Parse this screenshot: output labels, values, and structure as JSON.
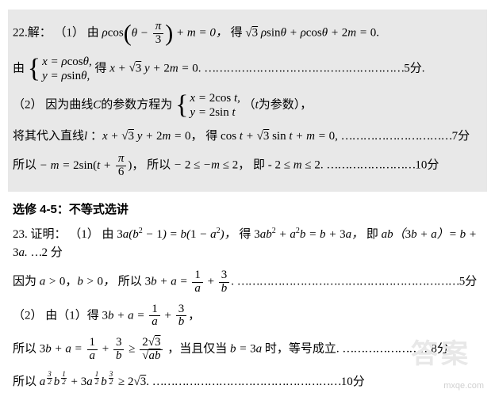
{
  "colors": {
    "bg": "#ffffff",
    "shade": "#e8e8e8",
    "text": "#000000",
    "wm": "#d0d0d0",
    "wm2": "#e8e8e8"
  },
  "q22": {
    "label": "22.解：",
    "p1": {
      "lead": "（1）",
      "by": "由",
      "expr1_a": "ρ",
      "expr1_cos": "cos",
      "expr1_in_a": "θ −",
      "expr1_frac_num": "π",
      "expr1_frac_den": "3",
      "expr1_b": "+ m = 0，",
      "get": "得",
      "expr2": "√3 ρsinθ + ρcosθ + 2m = 0."
    },
    "p1b": {
      "by": "由",
      "b1": "x = ρcosθ,",
      "b2": "y = ρsinθ,",
      "get": "得",
      "expr": "x + √3 y + 2m = 0.",
      "dots": "………………………………………………",
      "pts": "5分."
    },
    "p2": {
      "lead": "（2）",
      "t1": "因为曲线",
      "C": "C",
      "t2": "的参数方程为",
      "b1": "x = 2cos t,",
      "b2": "y = 2sin t",
      "t3": "（t为参数），"
    },
    "p2b": {
      "t1": "将其代入直线",
      "l": "l",
      "expr1": "：x + √3 y + 2m = 0，",
      "get": "得",
      "expr2": "cos t + √3 sin t + m = 0,",
      "dots": "…………………………",
      "pts": "7分"
    },
    "p2c": {
      "t1": "所以",
      "expr_a": "− m = 2sin(t +",
      "frac_num": "π",
      "frac_den": "6",
      "expr_b": ")，",
      "t2": "所以",
      "expr2": "− 2 ≤ −m ≤ 2，",
      "t3": "即",
      "expr3": "- 2 ≤ m ≤ 2.",
      "dots": "……………………",
      "pts": "10分"
    }
  },
  "heading": "选修 4-5：不等式选讲",
  "q23": {
    "label": "23. 证明：",
    "p1": {
      "lead": "（1）",
      "by": "由",
      "e1": "3a(b² − 1) = b(1 − a²)，",
      "get": "得",
      "e2": "3ab² + a²b = b + 3a，",
      "ie": "即",
      "e3": "ab（3b + a）= b + 3a.",
      "dots": "…",
      "pts": "2 分"
    },
    "p1b": {
      "t1": "因为",
      "e1": "a > 0，b > 0，",
      "t2": "所以",
      "lhs": "3b + a =",
      "f1n": "1",
      "f1d": "a",
      "plus": "+",
      "f2n": "3",
      "f2d": "b",
      "dot": ".",
      "dots": "……………………………………………………",
      "pts": "5分"
    },
    "p2": {
      "lead": "（2）",
      "t1": "由（1）得",
      "lhs": "3b + a =",
      "f1n": "1",
      "f1d": "a",
      "plus": "+",
      "f2n": "3",
      "f2d": "b",
      "comma": "，"
    },
    "p2b": {
      "t1": "所以",
      "lhs": "3b + a =",
      "f1n": "1",
      "f1d": "a",
      "plus": "+",
      "f2n": "3",
      "f2d": "b",
      "ge": " ≥ ",
      "f3n": "2√3",
      "f3d": "√ab",
      "t2": "，当且仅当",
      "e2": "b = 3a",
      "t3": "时，等号成立.",
      "dots": "……………………",
      "pts": "8分"
    },
    "p2c": {
      "t1": "所以",
      "term1_a": "a",
      "half_n": "3",
      "half_d": "2",
      "term1_b": "b",
      "half2_n": "1",
      "half2_d": "2",
      "plus": " + 3",
      "term2_a": "a",
      "term2_b": "b",
      "ge": " ≥ 2√3.",
      "dots": "……………………………………………",
      "pts": "10分"
    }
  },
  "watermark": {
    "big": "答案",
    "small": "mxqe.com"
  }
}
